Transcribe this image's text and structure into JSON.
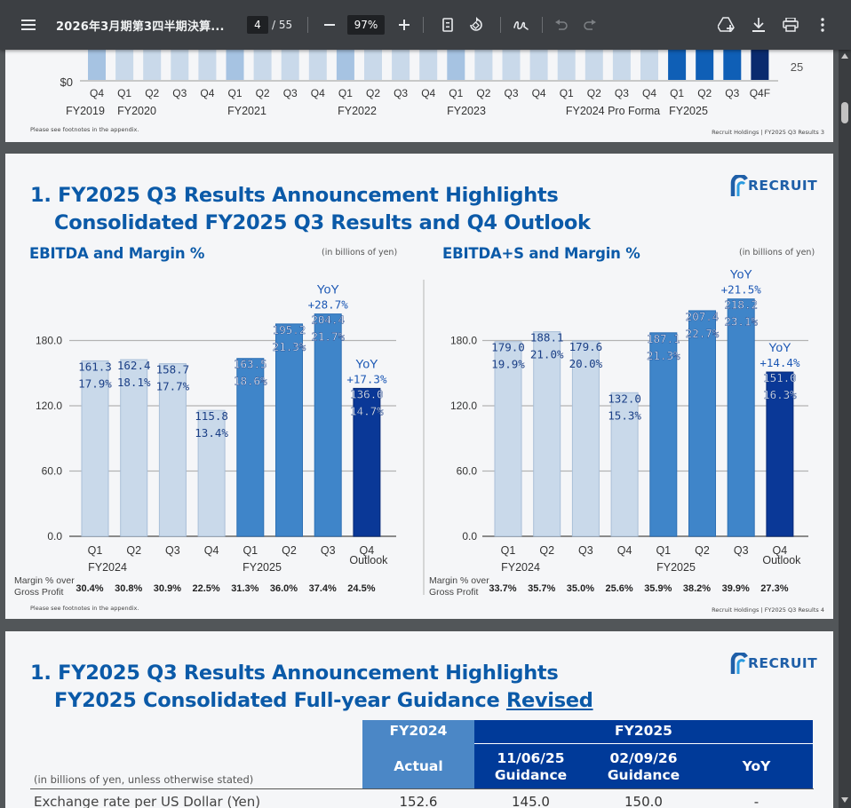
{
  "toolbar": {
    "title": "2026年3月期第3四半期決算...",
    "page_current": "4",
    "page_total": "/ 55",
    "zoom": "97%",
    "icons": [
      "menu-icon",
      "zoom-out-icon",
      "zoom-in-icon",
      "fit-page-icon",
      "rotate-icon",
      "draw-icon",
      "undo-icon",
      "redo-icon",
      "add-to-drive-icon",
      "download-icon",
      "print-icon",
      "more-icon"
    ]
  },
  "page3": {
    "y_zero": "$0",
    "right_value": "25",
    "quarters": [
      "Q4",
      "Q1",
      "Q2",
      "Q3",
      "Q4",
      "Q1",
      "Q2",
      "Q3",
      "Q4",
      "Q1",
      "Q2",
      "Q3",
      "Q4",
      "Q1",
      "Q2",
      "Q3",
      "Q4",
      "Q1",
      "Q2",
      "Q3",
      "Q4",
      "Q1",
      "Q2",
      "Q3",
      "Q4F"
    ],
    "years": [
      "FY2019",
      "FY2020",
      "FY2021",
      "FY2022",
      "FY2023",
      "FY2024 Pro Forma",
      "FY2025"
    ],
    "footnote": "Please see footnotes in the appendix.",
    "footer": "Recruit Holdings | FY2025 Q3 Results  3"
  },
  "page4": {
    "title_line1": "1. FY2025 Q3 Results Announcement Highlights",
    "title_line2": "Consolidated FY2025 Q3 Results and Q4 Outlook",
    "logo": "RECRUIT",
    "left_title": "EBITDA and Margin %",
    "right_title": "EBITDA+S and Margin %",
    "unit": "(in billions of yen)",
    "gross_label_1": "Margin % over",
    "gross_label_2": "Gross Profit",
    "left_gross": [
      "30.4%",
      "30.8%",
      "30.9%",
      "22.5%",
      "31.3%",
      "36.0%",
      "37.4%",
      "24.5%"
    ],
    "right_gross": [
      "33.7%",
      "35.7%",
      "35.0%",
      "25.6%",
      "35.9%",
      "38.2%",
      "39.9%",
      "27.3%"
    ],
    "footnote": "Please see footnotes in the appendix.",
    "footer": "Recruit Holdings | FY2025 Q3 Results  4"
  },
  "chart_data": [
    {
      "type": "bar",
      "title": "EBITDA and Margin %",
      "unit": "(in billions of yen)",
      "categories": [
        "Q1",
        "Q2",
        "Q3",
        "Q4",
        "Q1",
        "Q2",
        "Q3",
        "Q4"
      ],
      "groups": [
        {
          "label": "FY2024",
          "span": 4
        },
        {
          "label": "FY2025",
          "span": 4
        }
      ],
      "last_category_note": "Outlook",
      "values": [
        161.3,
        162.4,
        158.7,
        115.8,
        163.5,
        195.2,
        204.4,
        136.0
      ],
      "value_labels": [
        "161.3",
        "162.4",
        "158.7",
        "115.8",
        "163.5",
        "195.2",
        "204.4",
        "136.0"
      ],
      "margins": [
        "17.9%",
        "18.1%",
        "17.7%",
        "13.4%",
        "18.6%",
        "21.3%",
        "21.7%",
        "14.7%"
      ],
      "colors": [
        "#c9d9ea",
        "#c9d9ea",
        "#c9d9ea",
        "#c9d9ea",
        "#3f85c9",
        "#3f85c9",
        "#3f85c9",
        "#0a3897"
      ],
      "yoy": [
        {
          "index": 6,
          "label": "YoY",
          "value": "+28.7%"
        },
        {
          "index": 7,
          "label": "YoY",
          "value": "+17.3%"
        }
      ],
      "yticks": [
        "0.0",
        "60.0",
        "120.0",
        "180.0"
      ],
      "ylim": [
        0,
        230
      ]
    },
    {
      "type": "bar",
      "title": "EBITDA+S and Margin %",
      "unit": "(in billions of yen)",
      "categories": [
        "Q1",
        "Q2",
        "Q3",
        "Q4",
        "Q1",
        "Q2",
        "Q3",
        "Q4"
      ],
      "groups": [
        {
          "label": "FY2024",
          "span": 4
        },
        {
          "label": "FY2025",
          "span": 4
        }
      ],
      "last_category_note": "Outlook",
      "values": [
        179.0,
        188.1,
        179.6,
        132.0,
        187.1,
        207.4,
        218.2,
        151.0
      ],
      "value_labels": [
        "179.0",
        "188.1",
        "179.6",
        "132.0",
        "187.1",
        "207.4",
        "218.2",
        "151.0"
      ],
      "margins": [
        "19.9%",
        "21.0%",
        "20.0%",
        "15.3%",
        "21.3%",
        "22.7%",
        "23.1%",
        "16.3%"
      ],
      "colors": [
        "#c9d9ea",
        "#c9d9ea",
        "#c9d9ea",
        "#c9d9ea",
        "#3f85c9",
        "#3f85c9",
        "#3f85c9",
        "#0a3897"
      ],
      "yoy": [
        {
          "index": 6,
          "label": "YoY",
          "value": "+21.5%"
        },
        {
          "index": 7,
          "label": "YoY",
          "value": "+14.4%"
        }
      ],
      "yticks": [
        "0.0",
        "60.0",
        "120.0",
        "180.0"
      ],
      "ylim": [
        0,
        230
      ]
    }
  ],
  "page5": {
    "title_line1": "1. FY2025 Q3 Results Announcement Highlights",
    "title_line2a": "FY2025 Consolidated Full-year Guidance ",
    "title_line2b": "Revised",
    "logo": "RECRUIT",
    "unit": "(in billions of yen, unless otherwise stated)",
    "col_fy2024": "FY2024",
    "col_fy2025": "FY2025",
    "col_actual": "Actual",
    "col_g1_date": "11/06/25",
    "col_g1": "Guidance",
    "col_g2_date": "02/09/26",
    "col_g2": "Guidance",
    "col_yoy": "YoY",
    "row1_label": "Exchange rate per US Dollar (Yen)",
    "row1_values": [
      "152.6",
      "145.0",
      "150.0",
      "-"
    ]
  }
}
